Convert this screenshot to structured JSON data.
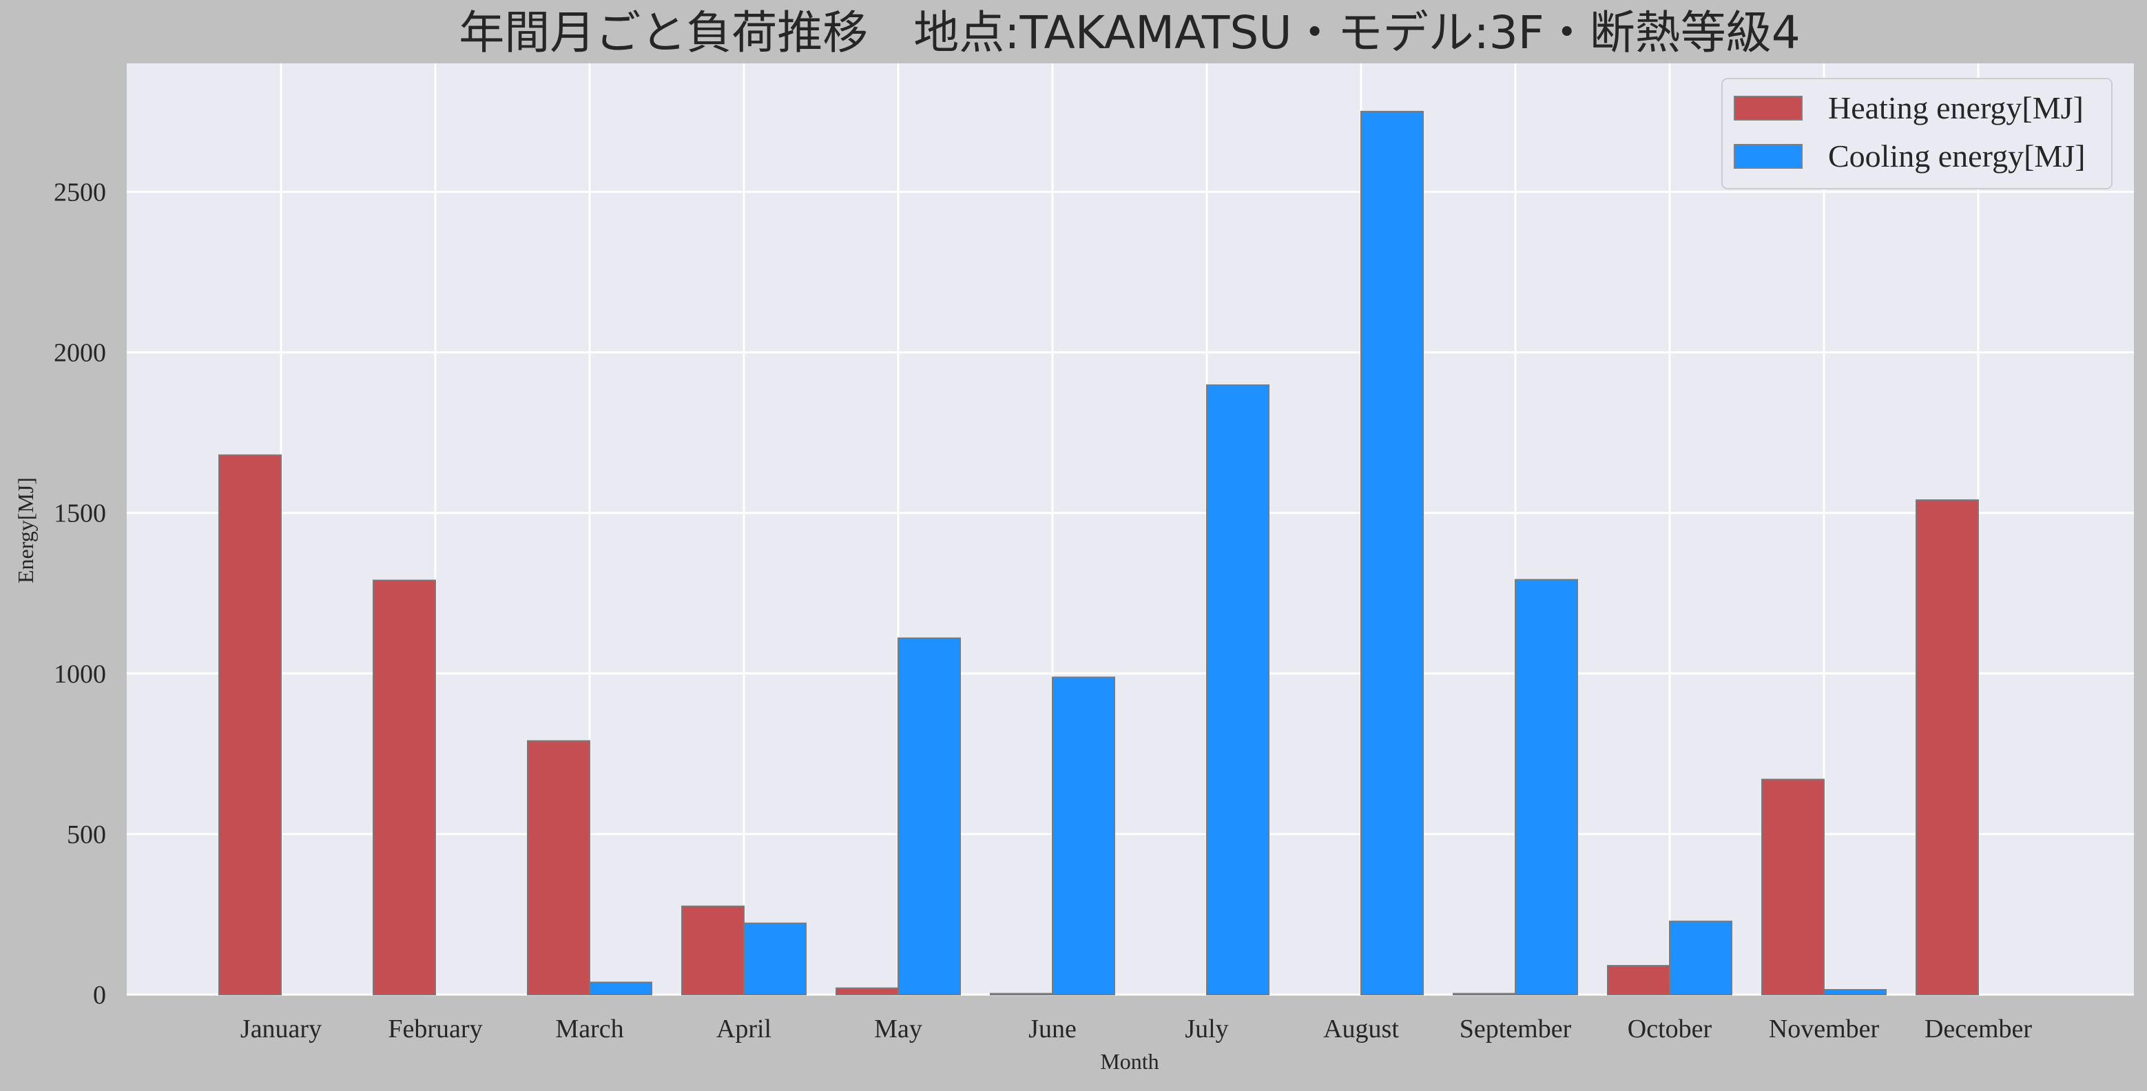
{
  "chart_data": {
    "type": "bar",
    "title": "年間月ごと負荷推移　地点:TAKAMATSU・モデル:3F・断熱等級4",
    "xlabel": "Month",
    "ylabel": "Energy[MJ]",
    "ylim": [
      0,
      2900
    ],
    "yticks": [
      0,
      500,
      1000,
      1500,
      2000,
      2500
    ],
    "ytick_labels": [
      "0",
      "500",
      "1000",
      "1500",
      "2000",
      "2500"
    ],
    "grid": true,
    "legend_position": "top-right",
    "categories": [
      "January",
      "February",
      "March",
      "April",
      "May",
      "June",
      "July",
      "August",
      "September",
      "October",
      "November",
      "December"
    ],
    "series": [
      {
        "name": "Heating energy[MJ]",
        "color": "#c44e52",
        "values": [
          1680,
          1290,
          790,
          275,
          20,
          3,
          0,
          0,
          3,
          90,
          670,
          1540
        ]
      },
      {
        "name": "Cooling energy[MJ]",
        "color": "#1e90ff",
        "values": [
          0,
          0,
          38,
          222,
          1110,
          988,
          1898,
          2750,
          1292,
          228,
          15,
          0
        ]
      }
    ]
  }
}
